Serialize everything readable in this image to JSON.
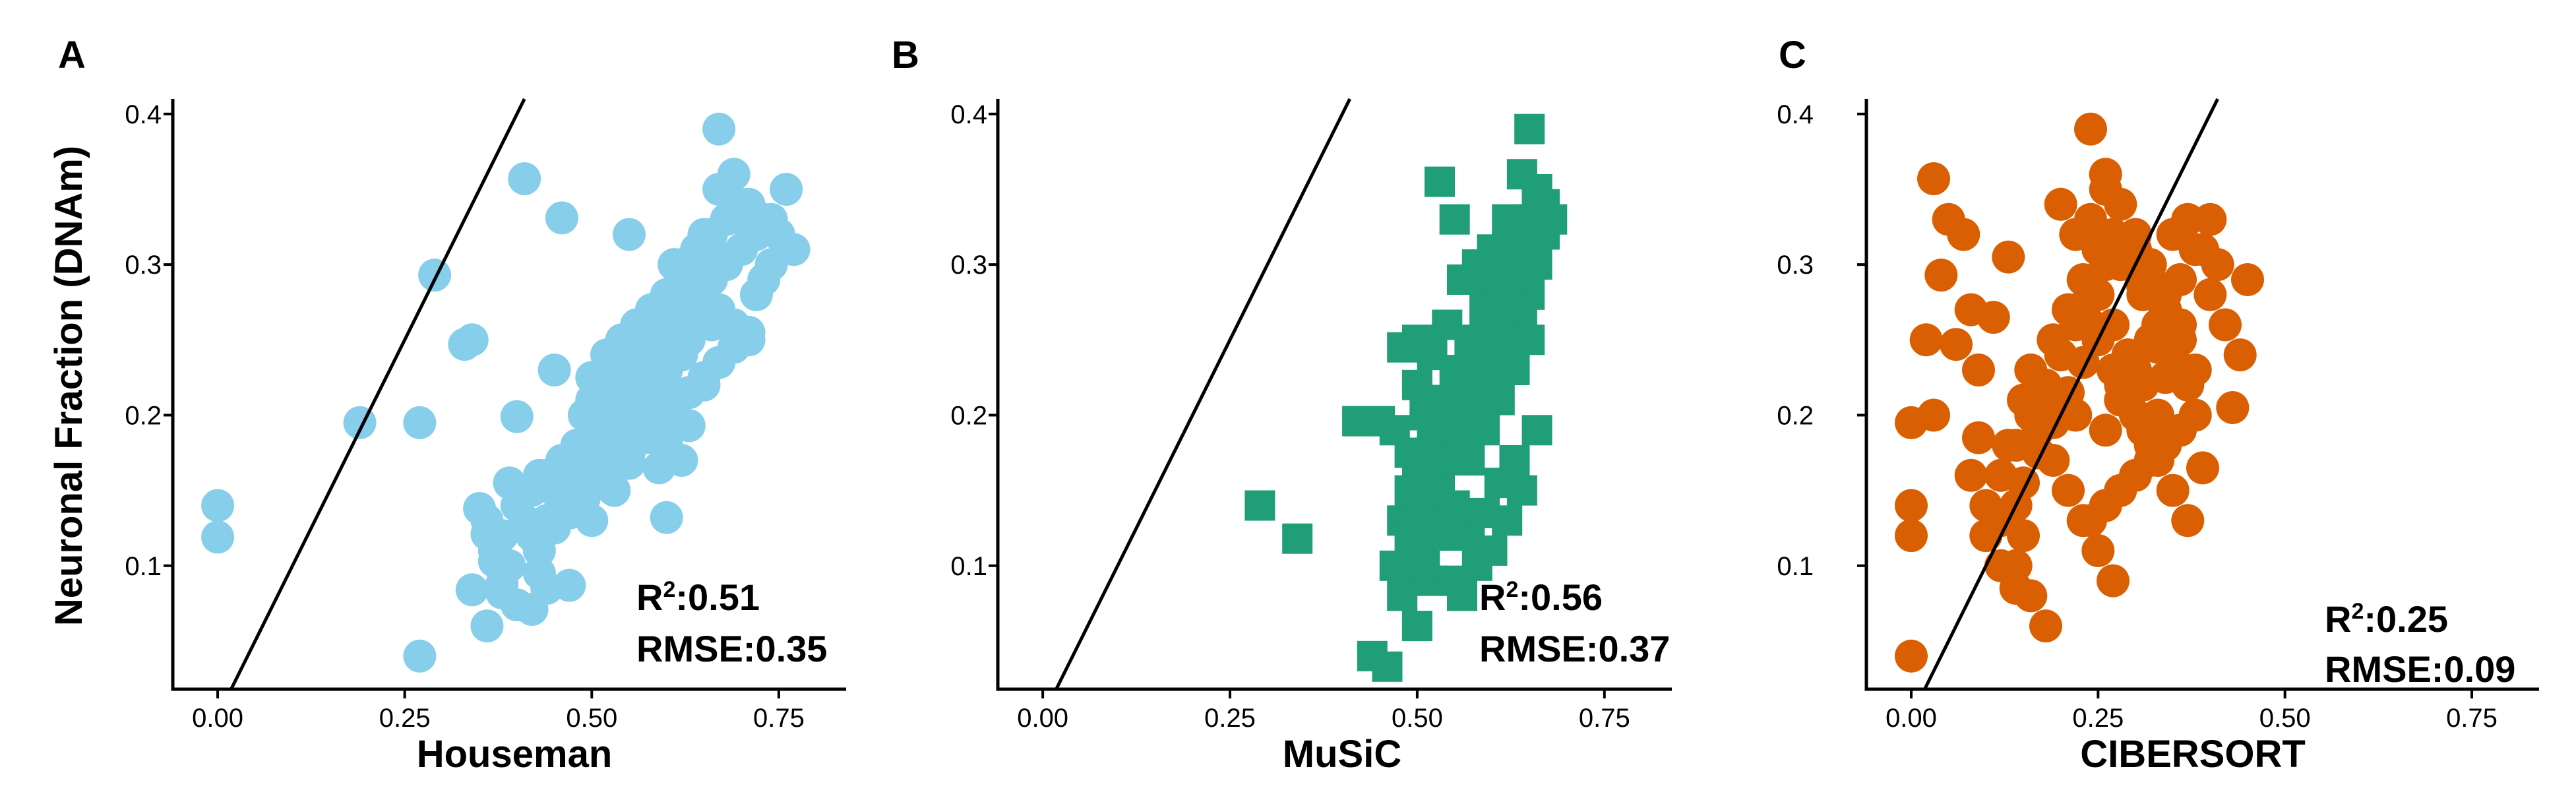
{
  "y_axis_title": "Neuronal Fraction (DNAm)",
  "chart_data": [
    {
      "type": "scatter",
      "panel": "A",
      "xlabel": "Houseman",
      "ylabel": "Neuronal Fraction (DNAm)",
      "xlim": [
        -0.06,
        0.84
      ],
      "ylim": [
        0.018,
        0.41
      ],
      "xticks": [
        0.0,
        0.25,
        0.5,
        0.75
      ],
      "xtick_labels": [
        "0.00",
        "0.25",
        "0.50",
        "0.75"
      ],
      "yticks": [
        0.1,
        0.2,
        0.3,
        0.4
      ],
      "ytick_labels": [
        "0.1",
        "0.2",
        "0.3",
        "0.4"
      ],
      "marker": "circle",
      "color": "#87CEEB",
      "identity_line": true,
      "grid": false,
      "stats": {
        "r2_prefix": "R",
        "r2_sup": "2",
        "r2_value": ":0.51",
        "rmse": "RMSE:0.35"
      },
      "points": {
        "x": [
          0.0,
          0.0,
          0.19,
          0.27,
          0.29,
          0.33,
          0.34,
          0.4,
          0.41,
          0.46,
          0.39,
          0.55,
          0.67,
          0.35,
          0.36,
          0.43,
          0.38,
          0.4,
          0.42,
          0.36,
          0.27,
          0.34,
          0.38,
          0.37,
          0.44,
          0.47,
          0.5,
          0.53,
          0.6,
          0.55,
          0.6,
          0.62,
          0.59,
          0.63,
          0.48,
          0.45,
          0.5,
          0.52,
          0.55,
          0.57,
          0.6,
          0.58,
          0.62,
          0.64,
          0.66,
          0.68,
          0.7,
          0.72,
          0.74,
          0.67,
          0.69,
          0.71,
          0.73,
          0.75,
          0.77,
          0.76,
          0.7,
          0.65,
          0.68,
          0.72,
          0.66,
          0.63,
          0.61,
          0.58,
          0.56,
          0.54,
          0.52,
          0.5,
          0.48,
          0.46,
          0.44,
          0.42,
          0.4,
          0.38,
          0.41,
          0.43,
          0.45,
          0.47,
          0.49,
          0.51,
          0.53,
          0.55,
          0.57,
          0.59,
          0.61,
          0.63,
          0.65,
          0.67,
          0.69,
          0.71,
          0.52,
          0.54,
          0.56,
          0.58,
          0.6,
          0.62,
          0.64,
          0.66,
          0.5,
          0.52,
          0.55,
          0.57,
          0.59,
          0.61,
          0.63,
          0.65,
          0.49,
          0.51,
          0.53,
          0.56,
          0.58,
          0.6,
          0.62,
          0.45,
          0.47,
          0.49,
          0.51,
          0.53,
          0.55,
          0.57,
          0.59,
          0.62,
          0.64,
          0.66,
          0.68,
          0.7,
          0.72,
          0.74,
          0.6,
          0.63,
          0.65,
          0.67,
          0.69,
          0.71,
          0.56,
          0.58,
          0.42,
          0.44,
          0.46,
          0.48,
          0.5,
          0.53,
          0.36,
          0.37,
          0.39,
          0.43,
          0.63,
          0.58,
          0.73,
          0.56,
          0.65,
          0.61
        ],
        "y": [
          0.14,
          0.119,
          0.195,
          0.195,
          0.293,
          0.247,
          0.25,
          0.199,
          0.357,
          0.331,
          0.155,
          0.32,
          0.39,
          0.138,
          0.121,
          0.16,
          0.082,
          0.074,
          0.071,
          0.06,
          0.04,
          0.084,
          0.088,
          0.103,
          0.085,
          0.087,
          0.13,
          0.15,
          0.132,
          0.168,
          0.181,
          0.17,
          0.165,
          0.193,
          0.175,
          0.23,
          0.225,
          0.21,
          0.22,
          0.24,
          0.25,
          0.26,
          0.27,
          0.28,
          0.29,
          0.3,
          0.31,
          0.32,
          0.33,
          0.35,
          0.36,
          0.34,
          0.33,
          0.32,
          0.31,
          0.35,
          0.33,
          0.32,
          0.3,
          0.28,
          0.26,
          0.25,
          0.24,
          0.23,
          0.22,
          0.21,
          0.2,
          0.19,
          0.18,
          0.17,
          0.16,
          0.15,
          0.14,
          0.12,
          0.13,
          0.11,
          0.125,
          0.135,
          0.145,
          0.155,
          0.165,
          0.175,
          0.185,
          0.195,
          0.205,
          0.215,
          0.225,
          0.235,
          0.245,
          0.255,
          0.24,
          0.25,
          0.26,
          0.27,
          0.28,
          0.29,
          0.3,
          0.31,
          0.21,
          0.22,
          0.23,
          0.24,
          0.25,
          0.26,
          0.27,
          0.28,
          0.2,
          0.19,
          0.2,
          0.21,
          0.22,
          0.23,
          0.24,
          0.15,
          0.16,
          0.17,
          0.18,
          0.19,
          0.2,
          0.21,
          0.22,
          0.3,
          0.31,
          0.32,
          0.33,
          0.34,
          0.33,
          0.3,
          0.28,
          0.29,
          0.3,
          0.27,
          0.26,
          0.25,
          0.26,
          0.27,
          0.12,
          0.13,
          0.14,
          0.15,
          0.16,
          0.17,
          0.13,
          0.11,
          0.1,
          0.095,
          0.215,
          0.185,
          0.29,
          0.2,
          0.22,
          0.3
        ]
      }
    },
    {
      "type": "scatter",
      "panel": "B",
      "xlabel": "MuSiC",
      "ylabel": "",
      "xlim": [
        -0.06,
        0.84
      ],
      "ylim": [
        0.018,
        0.41
      ],
      "xticks": [
        0.0,
        0.25,
        0.5,
        0.75
      ],
      "xtick_labels": [
        "0.00",
        "0.25",
        "0.50",
        "0.75"
      ],
      "yticks": [
        0.1,
        0.2,
        0.3,
        0.4
      ],
      "ytick_labels": [
        "0.1",
        "0.2",
        "0.3",
        "0.4"
      ],
      "marker": "square",
      "color": "#1F9E77",
      "identity_line": true,
      "grid": false,
      "stats": {
        "r2_prefix": "R",
        "r2_sup": "2",
        "r2_value": ":0.56",
        "rmse": "RMSE:0.37"
      },
      "points": {
        "x": [
          0.29,
          0.34,
          0.42,
          0.45,
          0.44,
          0.46,
          0.48,
          0.5,
          0.47,
          0.52,
          0.53,
          0.5,
          0.48,
          0.55,
          0.57,
          0.59,
          0.61,
          0.63,
          0.65,
          0.64,
          0.66,
          0.62,
          0.6,
          0.58,
          0.56,
          0.54,
          0.52,
          0.5,
          0.51,
          0.53,
          0.55,
          0.57,
          0.59,
          0.61,
          0.63,
          0.65,
          0.67,
          0.66,
          0.64,
          0.62,
          0.6,
          0.58,
          0.56,
          0.54,
          0.52,
          0.5,
          0.49,
          0.51,
          0.53,
          0.55,
          0.57,
          0.59,
          0.61,
          0.63,
          0.65,
          0.64,
          0.62,
          0.6,
          0.58,
          0.56,
          0.54,
          0.52,
          0.5,
          0.48,
          0.49,
          0.51,
          0.53,
          0.55,
          0.57,
          0.59,
          0.61,
          0.63,
          0.65,
          0.66,
          0.64,
          0.62,
          0.6,
          0.58,
          0.56,
          0.54,
          0.52,
          0.5,
          0.51,
          0.53,
          0.55,
          0.57,
          0.59,
          0.61,
          0.63,
          0.65,
          0.67,
          0.68,
          0.66,
          0.64,
          0.62,
          0.6,
          0.58,
          0.56,
          0.54,
          0.52,
          0.56,
          0.58,
          0.6,
          0.62,
          0.64,
          0.66,
          0.47,
          0.49,
          0.55,
          0.57,
          0.59,
          0.61,
          0.63
        ],
        "y": [
          0.14,
          0.118,
          0.196,
          0.196,
          0.04,
          0.033,
          0.08,
          0.06,
          0.1,
          0.09,
          0.355,
          0.25,
          0.245,
          0.33,
          0.29,
          0.3,
          0.28,
          0.27,
          0.39,
          0.36,
          0.35,
          0.33,
          0.31,
          0.3,
          0.29,
          0.26,
          0.24,
          0.22,
          0.2,
          0.21,
          0.23,
          0.25,
          0.27,
          0.29,
          0.31,
          0.33,
          0.34,
          0.32,
          0.3,
          0.28,
          0.26,
          0.24,
          0.22,
          0.2,
          0.18,
          0.16,
          0.15,
          0.17,
          0.19,
          0.21,
          0.23,
          0.25,
          0.27,
          0.29,
          0.31,
          0.28,
          0.26,
          0.24,
          0.22,
          0.2,
          0.18,
          0.16,
          0.14,
          0.13,
          0.12,
          0.14,
          0.16,
          0.18,
          0.2,
          0.22,
          0.24,
          0.26,
          0.28,
          0.3,
          0.27,
          0.25,
          0.23,
          0.21,
          0.19,
          0.17,
          0.15,
          0.13,
          0.1,
          0.12,
          0.14,
          0.17,
          0.19,
          0.21,
          0.23,
          0.25,
          0.32,
          0.33,
          0.35,
          0.32,
          0.29,
          0.27,
          0.25,
          0.23,
          0.21,
          0.19,
          0.08,
          0.1,
          0.11,
          0.13,
          0.15,
          0.19,
          0.19,
          0.175,
          0.09,
          0.12,
          0.135,
          0.155,
          0.17
        ]
      }
    },
    {
      "type": "scatter",
      "panel": "C",
      "xlabel": "CIBERSORT",
      "ylabel": "",
      "xlim": [
        -0.06,
        0.84
      ],
      "ylim": [
        0.018,
        0.41
      ],
      "xticks": [
        0.0,
        0.25,
        0.5,
        0.75
      ],
      "xtick_labels": [
        "0.00",
        "0.25",
        "0.50",
        "0.75"
      ],
      "yticks": [
        0.1,
        0.2,
        0.3,
        0.4
      ],
      "ytick_labels": [
        "0.1",
        "0.2",
        "0.3",
        "0.4"
      ],
      "marker": "circle",
      "color": "#D95F02",
      "identity_line": true,
      "grid": false,
      "stats": {
        "r2_prefix": "R",
        "r2_sup": "2",
        "r2_value": ":0.25",
        "rmse": "RMSE:0.09"
      },
      "points": {
        "x": [
          0.0,
          0.0,
          0.0,
          0.0,
          0.03,
          0.05,
          0.07,
          0.04,
          0.06,
          0.02,
          0.03,
          0.08,
          0.09,
          0.1,
          0.12,
          0.14,
          0.13,
          0.11,
          0.09,
          0.08,
          0.1,
          0.12,
          0.14,
          0.16,
          0.18,
          0.15,
          0.17,
          0.19,
          0.21,
          0.23,
          0.2,
          0.22,
          0.24,
          0.26,
          0.28,
          0.25,
          0.27,
          0.29,
          0.31,
          0.33,
          0.3,
          0.32,
          0.34,
          0.36,
          0.38,
          0.35,
          0.37,
          0.39,
          0.41,
          0.4,
          0.42,
          0.44,
          0.43,
          0.45,
          0.38,
          0.36,
          0.34,
          0.32,
          0.3,
          0.28,
          0.26,
          0.24,
          0.22,
          0.2,
          0.18,
          0.16,
          0.19,
          0.21,
          0.23,
          0.25,
          0.27,
          0.29,
          0.31,
          0.33,
          0.35,
          0.37,
          0.26,
          0.28,
          0.3,
          0.32,
          0.34,
          0.36,
          0.38,
          0.4,
          0.2,
          0.22,
          0.24,
          0.26,
          0.28,
          0.3,
          0.32,
          0.15,
          0.17,
          0.19,
          0.21,
          0.23,
          0.25,
          0.27,
          0.12,
          0.14,
          0.16,
          0.18,
          0.24,
          0.26,
          0.28,
          0.3,
          0.32,
          0.34,
          0.36,
          0.22,
          0.25,
          0.27,
          0.29,
          0.31,
          0.33,
          0.35,
          0.37,
          0.14,
          0.15,
          0.13,
          0.17,
          0.24,
          0.34,
          0.29,
          0.33,
          0.39,
          0.26,
          0.31
        ],
        "y": [
          0.195,
          0.14,
          0.12,
          0.04,
          0.357,
          0.33,
          0.32,
          0.293,
          0.247,
          0.25,
          0.2,
          0.27,
          0.185,
          0.12,
          0.1,
          0.085,
          0.305,
          0.265,
          0.23,
          0.16,
          0.14,
          0.13,
          0.1,
          0.08,
          0.06,
          0.155,
          0.175,
          0.195,
          0.215,
          0.235,
          0.34,
          0.32,
          0.33,
          0.35,
          0.3,
          0.28,
          0.26,
          0.24,
          0.22,
          0.2,
          0.31,
          0.29,
          0.27,
          0.25,
          0.23,
          0.32,
          0.33,
          0.31,
          0.3,
          0.28,
          0.26,
          0.24,
          0.205,
          0.29,
          0.2,
          0.19,
          0.18,
          0.17,
          0.16,
          0.15,
          0.14,
          0.13,
          0.2,
          0.21,
          0.22,
          0.23,
          0.25,
          0.27,
          0.29,
          0.31,
          0.32,
          0.3,
          0.28,
          0.26,
          0.24,
          0.22,
          0.19,
          0.21,
          0.23,
          0.25,
          0.27,
          0.29,
          0.31,
          0.33,
          0.24,
          0.26,
          0.28,
          0.3,
          0.22,
          0.2,
          0.18,
          0.21,
          0.19,
          0.17,
          0.15,
          0.13,
          0.11,
          0.09,
          0.16,
          0.18,
          0.2,
          0.22,
          0.39,
          0.36,
          0.34,
          0.32,
          0.3,
          0.28,
          0.26,
          0.27,
          0.25,
          0.23,
          0.21,
          0.19,
          0.17,
          0.15,
          0.13,
          0.14,
          0.12,
          0.18,
          0.2,
          0.26,
          0.225,
          0.24,
          0.245,
          0.165,
          0.14,
          0.285
        ]
      }
    }
  ]
}
